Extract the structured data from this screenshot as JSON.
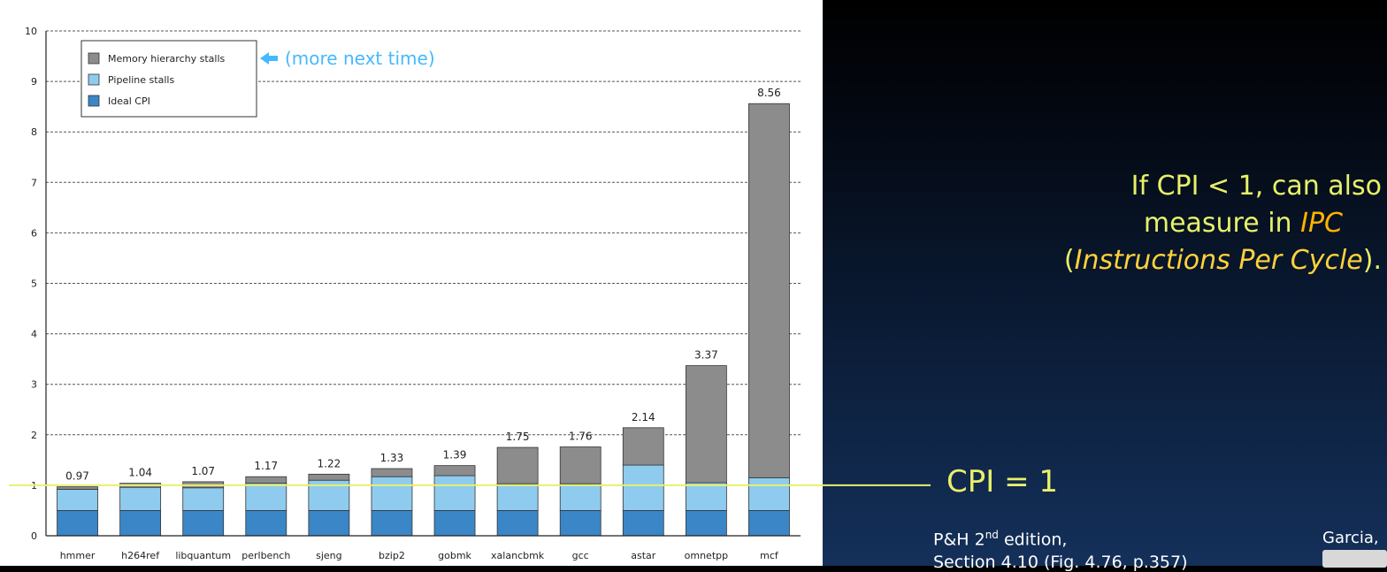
{
  "chart_data": {
    "type": "bar",
    "stacked": true,
    "categories": [
      "hmmer",
      "h264ref",
      "libquantum",
      "perlbench",
      "sjeng",
      "bzip2",
      "gobmk",
      "xalancbmk",
      "gcc",
      "astar",
      "omnetpp",
      "mcf"
    ],
    "totals_labels": [
      "0.97",
      "1.04",
      "1.07",
      "1.17",
      "1.22",
      "1.33",
      "1.39",
      "1.75",
      "1.76",
      "2.14",
      "3.37",
      "8.56"
    ],
    "totals": [
      0.97,
      1.04,
      1.07,
      1.17,
      1.22,
      1.33,
      1.39,
      1.75,
      1.76,
      2.14,
      3.37,
      8.56
    ],
    "series": [
      {
        "name": "Ideal CPI",
        "color": "#3b86c6",
        "values": [
          0.5,
          0.5,
          0.5,
          0.5,
          0.5,
          0.5,
          0.5,
          0.5,
          0.5,
          0.5,
          0.5,
          0.5
        ]
      },
      {
        "name": "Pipeline stalls",
        "color": "#8fcbee",
        "values": [
          0.42,
          0.46,
          0.45,
          0.54,
          0.6,
          0.67,
          0.69,
          0.53,
          0.53,
          0.9,
          0.55,
          0.65
        ]
      },
      {
        "name": "Memory hierarchy stalls",
        "color": "#8c8c8c",
        "values": [
          0.05,
          0.08,
          0.12,
          0.13,
          0.12,
          0.16,
          0.2,
          0.72,
          0.73,
          0.74,
          2.32,
          7.41
        ]
      }
    ],
    "ylim": [
      0,
      10
    ],
    "yticks": [
      "0",
      "1",
      "2",
      "3",
      "4",
      "5",
      "6",
      "7",
      "8",
      "9",
      "10"
    ],
    "legend_position": "top-left",
    "grid": true,
    "reference_line": {
      "value": 1,
      "label": "CPI = 1",
      "color": "#e8f06a"
    },
    "annotation": {
      "text": "(more next time)",
      "color": "#46b8ff"
    }
  },
  "side_note": {
    "line1": "If CPI < 1, can also",
    "line2_prefix": "measure in ",
    "line2_em": "IPC",
    "line3_open": "(",
    "line3_em": "Instructions Per Cycle",
    "line3_close": ")."
  },
  "cpi_label": "CPI = 1",
  "citation": {
    "prefix": "P&H 2",
    "sup": "nd",
    "suffix": " edition,",
    "line2": "Section 4.10 (Fig. 4.76, p.357)"
  },
  "author": "Garcia,"
}
